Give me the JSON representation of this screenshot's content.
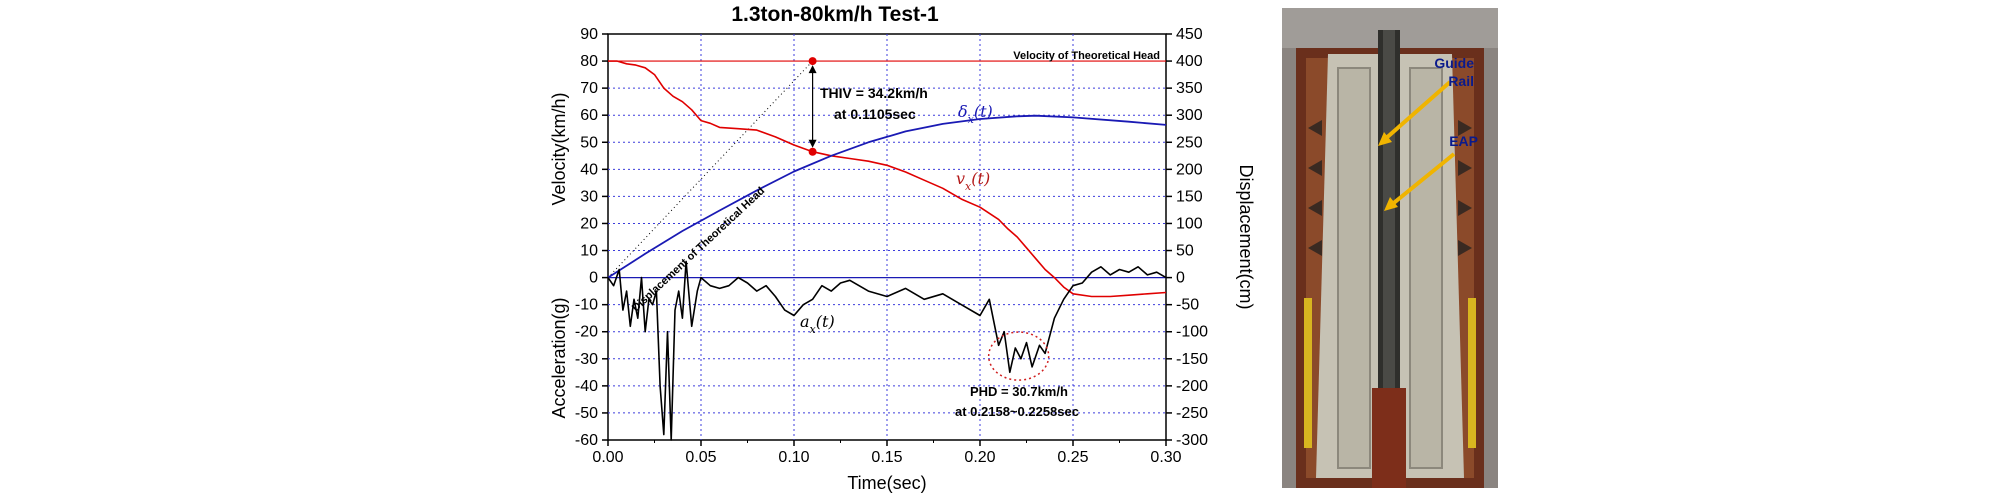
{
  "chart_data": {
    "type": "line",
    "title": "1.3ton-80km/h Test-1",
    "xlabel": "Time(sec)",
    "x_ticks": [
      "0.00",
      "0.05",
      "0.10",
      "0.15",
      "0.20",
      "0.25",
      "0.30"
    ],
    "xlim": [
      0,
      0.3
    ],
    "left_axis": {
      "labels": [
        "Velocity(km/h)",
        "Acceleration(g)"
      ],
      "ylim": [
        -60,
        90
      ],
      "ticks": [
        "90",
        "80",
        "70",
        "60",
        "50",
        "40",
        "30",
        "20",
        "10",
        "0",
        "-10",
        "-20",
        "-30",
        "-40",
        "-50",
        "-60"
      ]
    },
    "right_axis": {
      "label": "Displacement(cm)",
      "ylim": [
        -300,
        450
      ],
      "ticks": [
        "450",
        "400",
        "350",
        "300",
        "250",
        "200",
        "150",
        "100",
        "50",
        "0",
        "-50",
        "-100",
        "-150",
        "-200",
        "-250",
        "-300"
      ]
    },
    "grid": true,
    "series": [
      {
        "name": "v_x(t)",
        "axis": "left",
        "color": "#e00000",
        "x": [
          0,
          0.005,
          0.01,
          0.015,
          0.02,
          0.025,
          0.03,
          0.035,
          0.04,
          0.045,
          0.05,
          0.055,
          0.06,
          0.07,
          0.08,
          0.09,
          0.1,
          0.11,
          0.12,
          0.13,
          0.14,
          0.15,
          0.16,
          0.17,
          0.18,
          0.19,
          0.2,
          0.21,
          0.215,
          0.22,
          0.225,
          0.23,
          0.235,
          0.24,
          0.245,
          0.25,
          0.26,
          0.27,
          0.28,
          0.29,
          0.3
        ],
        "values": [
          80,
          80,
          79,
          78.5,
          77.5,
          75,
          70,
          67,
          65,
          62,
          58,
          57,
          55.5,
          55,
          54.5,
          52,
          49,
          46.5,
          45,
          44,
          43,
          41.5,
          39,
          36,
          33,
          29,
          26,
          21.5,
          18,
          15,
          11,
          7,
          3,
          0,
          -3.5,
          -6,
          -7,
          -7,
          -6.5,
          -6,
          -5.5
        ]
      },
      {
        "name": "δ_x(t)",
        "axis": "right",
        "color": "#1a1ab4",
        "x": [
          0,
          0.02,
          0.04,
          0.06,
          0.08,
          0.1,
          0.12,
          0.14,
          0.16,
          0.18,
          0.2,
          0.22,
          0.23,
          0.25,
          0.28,
          0.3
        ],
        "values": [
          0,
          44,
          86,
          124,
          161,
          196,
          225,
          250,
          270,
          284,
          293,
          298,
          299,
          296,
          288,
          282
        ]
      },
      {
        "name": "a_x(t)",
        "axis": "left",
        "color": "#000000",
        "x": [
          0,
          0.003,
          0.006,
          0.008,
          0.01,
          0.012,
          0.014,
          0.016,
          0.018,
          0.02,
          0.022,
          0.024,
          0.026,
          0.028,
          0.03,
          0.032,
          0.034,
          0.036,
          0.038,
          0.04,
          0.042,
          0.045,
          0.048,
          0.05,
          0.055,
          0.06,
          0.065,
          0.07,
          0.075,
          0.08,
          0.085,
          0.09,
          0.095,
          0.1,
          0.105,
          0.11,
          0.115,
          0.12,
          0.125,
          0.13,
          0.14,
          0.15,
          0.16,
          0.17,
          0.18,
          0.19,
          0.2,
          0.205,
          0.21,
          0.213,
          0.216,
          0.219,
          0.222,
          0.225,
          0.228,
          0.232,
          0.235,
          0.24,
          0.245,
          0.25,
          0.255,
          0.26,
          0.265,
          0.27,
          0.275,
          0.28,
          0.285,
          0.29,
          0.295,
          0.3
        ],
        "values": [
          0,
          -3,
          3,
          -12,
          -5,
          -18,
          -8,
          -15,
          0,
          -20,
          -8,
          -10,
          -5,
          -40,
          -58,
          -20,
          -60,
          -12,
          -5,
          -15,
          6,
          -18,
          -5,
          0,
          -3,
          -4,
          -3,
          0,
          -2,
          -5,
          -3,
          -7,
          -12,
          -14,
          -10,
          -8,
          -3,
          -5,
          -2,
          -1,
          -5,
          -7,
          -4,
          -8,
          -6,
          -10,
          -14,
          -8,
          -25,
          -20,
          -35,
          -26,
          -30,
          -24,
          -33,
          -25,
          -28,
          -15,
          -8,
          -3,
          -2,
          2,
          4,
          1,
          3,
          2,
          4,
          1,
          2,
          0
        ]
      }
    ],
    "reference_lines": [
      {
        "name": "Velocity of Theoretical Head",
        "axis": "left",
        "value": 80,
        "color": "#e00000"
      },
      {
        "name": "Displacement of Theoretical Head",
        "axis": "left",
        "x": [
          0,
          0.11
        ],
        "values": [
          0,
          80
        ],
        "color": "#000000",
        "style": "dotted"
      }
    ],
    "annotations": [
      {
        "text": "Velocity of Theoretical Head"
      },
      {
        "text": "THIV = 34.2km/h"
      },
      {
        "text": "at 0.1105sec"
      },
      {
        "text": "PHD = 30.7km/h"
      },
      {
        "text": "at 0.2158~0.2258sec"
      },
      {
        "text": "Displacement of Theoretical Head"
      }
    ],
    "thiv_marker": {
      "x": 0.11,
      "v_top": 80,
      "v_bottom": 46.5
    },
    "phd_region": {
      "x": 0.2208,
      "value": -29
    }
  },
  "photo": {
    "labels": [
      "Guide Rail",
      "EAP"
    ],
    "label_color": "#0a1a8c",
    "arrow_color": "#f0b400"
  }
}
